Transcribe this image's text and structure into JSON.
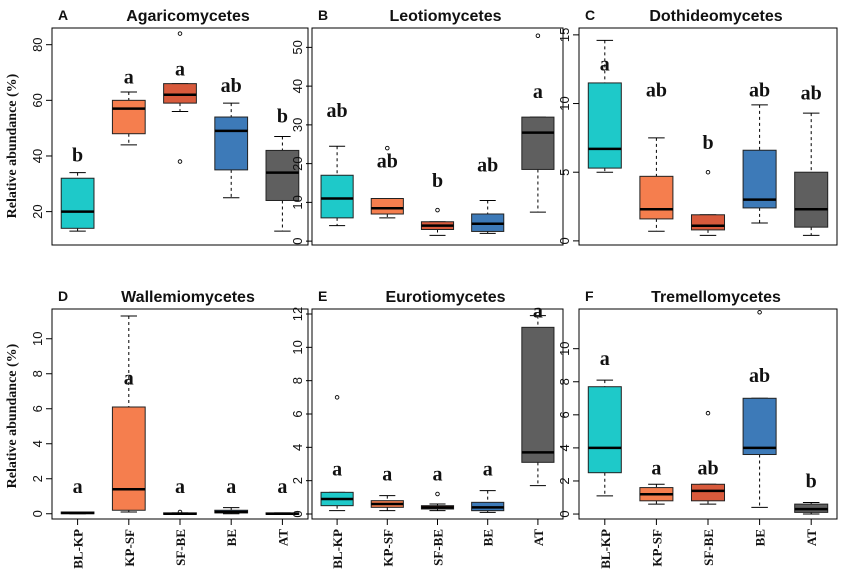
{
  "figure": {
    "ylabel": "Relative abundance (%)",
    "colors": {
      "BL-KP": "#1ec9c9",
      "KP-SF": "#f57e4e",
      "SF-BE": "#d85a3c",
      "BE": "#3d7ab8",
      "AT": "#5f5f5f"
    }
  },
  "chart_data": [
    {
      "type": "box",
      "letter": "A",
      "title": "Agaricomycetes",
      "categories": [
        "BL-KP",
        "KP-SF",
        "SF-BE",
        "BE",
        "AT"
      ],
      "ylim": [
        8,
        86
      ],
      "yticks": [
        20,
        40,
        60,
        80
      ],
      "boxes": [
        {
          "min": 13,
          "q1": 14,
          "median": 20,
          "q3": 32,
          "max": 34,
          "outliers": []
        },
        {
          "min": 44,
          "q1": 48,
          "median": 57,
          "q3": 60,
          "max": 63,
          "outliers": []
        },
        {
          "min": 56,
          "q1": 59,
          "median": 62,
          "q3": 66,
          "max": 66,
          "outliers": [
            84,
            38
          ]
        },
        {
          "min": 25,
          "q1": 35,
          "median": 49,
          "q3": 54,
          "max": 59,
          "outliers": []
        },
        {
          "min": 13,
          "q1": 24,
          "median": 34,
          "q3": 42,
          "max": 47,
          "outliers": []
        }
      ],
      "labels": [
        "b",
        "a",
        "a",
        "ab",
        "b"
      ],
      "label_y": [
        38,
        66,
        69,
        63,
        52
      ]
    },
    {
      "type": "box",
      "letter": "B",
      "title": "Leotiomycetes",
      "categories": [
        "BL-KP",
        "KP-SF",
        "SF-BE",
        "BE",
        "AT"
      ],
      "ylim": [
        -1,
        55
      ],
      "yticks": [
        0,
        10,
        20,
        30,
        40,
        50
      ],
      "boxes": [
        {
          "min": 4,
          "q1": 6,
          "median": 11,
          "q3": 17,
          "max": 24.5,
          "outliers": []
        },
        {
          "min": 6,
          "q1": 7,
          "median": 8.5,
          "q3": 11,
          "max": 11,
          "outliers": [
            24
          ]
        },
        {
          "min": 1.5,
          "q1": 3,
          "median": 4,
          "q3": 5,
          "max": 5,
          "outliers": [
            8
          ]
        },
        {
          "min": 2,
          "q1": 2.5,
          "median": 4.5,
          "q3": 7,
          "max": 10.5,
          "outliers": []
        },
        {
          "min": 7.5,
          "q1": 18.5,
          "median": 28,
          "q3": 32,
          "max": 32,
          "outliers": [
            53
          ]
        }
      ],
      "labels": [
        "ab",
        "ab",
        "b",
        "ab",
        "a"
      ],
      "label_y": [
        32,
        19,
        14,
        18,
        37
      ]
    },
    {
      "type": "box",
      "letter": "C",
      "title": "Dothideomycetes",
      "categories": [
        "BL-KP",
        "KP-SF",
        "SF-BE",
        "BE",
        "AT"
      ],
      "ylim": [
        -0.3,
        15.5
      ],
      "yticks": [
        0,
        5,
        10,
        15
      ],
      "boxes": [
        {
          "min": 5,
          "q1": 5.3,
          "median": 6.7,
          "q3": 11.5,
          "max": 14.6,
          "outliers": []
        },
        {
          "min": 0.7,
          "q1": 1.6,
          "median": 2.3,
          "q3": 4.7,
          "max": 7.5,
          "outliers": []
        },
        {
          "min": 0.4,
          "q1": 0.8,
          "median": 1.1,
          "q3": 1.9,
          "max": 1.9,
          "outliers": [
            5
          ]
        },
        {
          "min": 1.3,
          "q1": 2.4,
          "median": 3,
          "q3": 6.6,
          "max": 9.9,
          "outliers": []
        },
        {
          "min": 0.4,
          "q1": 1,
          "median": 2.3,
          "q3": 5,
          "max": 9.3,
          "outliers": []
        }
      ],
      "labels": [
        "a",
        "ab",
        "b",
        "ab",
        "ab"
      ],
      "label_y": [
        12.4,
        10.5,
        6.7,
        10.5,
        10.3
      ]
    },
    {
      "type": "box",
      "letter": "D",
      "title": "Wallemiomycetes",
      "categories": [
        "BL-KP",
        "KP-SF",
        "SF-BE",
        "BE",
        "AT"
      ],
      "ylim": [
        -0.3,
        11.7
      ],
      "yticks": [
        0,
        2,
        4,
        6,
        8,
        10
      ],
      "boxes": [
        {
          "min": 0,
          "q1": 0,
          "median": 0.05,
          "q3": 0.1,
          "max": 0.1,
          "outliers": []
        },
        {
          "min": 0.1,
          "q1": 0.2,
          "median": 1.4,
          "q3": 6.1,
          "max": 11.3,
          "outliers": []
        },
        {
          "min": 0,
          "q1": 0,
          "median": 0,
          "q3": 0.05,
          "max": 0.05,
          "outliers": [
            0.1
          ]
        },
        {
          "min": 0,
          "q1": 0.05,
          "median": 0.1,
          "q3": 0.2,
          "max": 0.35,
          "outliers": []
        },
        {
          "min": 0,
          "q1": 0,
          "median": 0,
          "q3": 0.05,
          "max": 0.05,
          "outliers": []
        }
      ],
      "labels": [
        "a",
        "a",
        "a",
        "a",
        "a"
      ],
      "label_y": [
        1.2,
        7.4,
        1.2,
        1.2,
        1.2
      ]
    },
    {
      "type": "box",
      "letter": "E",
      "title": "Eurotiomycetes",
      "categories": [
        "BL-KP",
        "KP-SF",
        "SF-BE",
        "BE",
        "AT"
      ],
      "ylim": [
        -0.3,
        12.3
      ],
      "yticks": [
        0,
        2,
        4,
        6,
        8,
        10,
        12
      ],
      "boxes": [
        {
          "min": 0.2,
          "q1": 0.5,
          "median": 0.9,
          "q3": 1.3,
          "max": 1.3,
          "outliers": [
            7
          ]
        },
        {
          "min": 0.2,
          "q1": 0.4,
          "median": 0.6,
          "q3": 0.8,
          "max": 1.1,
          "outliers": []
        },
        {
          "min": 0.2,
          "q1": 0.3,
          "median": 0.4,
          "q3": 0.5,
          "max": 0.6,
          "outliers": [
            1.2
          ]
        },
        {
          "min": 0.1,
          "q1": 0.2,
          "median": 0.4,
          "q3": 0.7,
          "max": 1.4,
          "outliers": []
        },
        {
          "min": 1.7,
          "q1": 3.1,
          "median": 3.7,
          "q3": 11.2,
          "max": 11.9,
          "outliers": []
        }
      ],
      "labels": [
        "a",
        "a",
        "a",
        "a",
        "a"
      ],
      "label_y": [
        2.3,
        2,
        2,
        2.3,
        11.8
      ]
    },
    {
      "type": "box",
      "letter": "F",
      "title": "Tremellomycetes",
      "categories": [
        "BL-KP",
        "KP-SF",
        "SF-BE",
        "BE",
        "AT"
      ],
      "ylim": [
        -0.3,
        12.4
      ],
      "yticks": [
        0,
        2,
        4,
        6,
        8,
        10
      ],
      "boxes": [
        {
          "min": 1.1,
          "q1": 2.5,
          "median": 4,
          "q3": 7.7,
          "max": 8.1,
          "outliers": []
        },
        {
          "min": 0.6,
          "q1": 0.8,
          "median": 1.2,
          "q3": 1.6,
          "max": 1.8,
          "outliers": []
        },
        {
          "min": 0.6,
          "q1": 0.8,
          "median": 1.4,
          "q3": 1.8,
          "max": 1.8,
          "outliers": [
            6.1
          ]
        },
        {
          "min": 0.4,
          "q1": 3.6,
          "median": 4,
          "q3": 7,
          "max": 7,
          "outliers": [
            12.2
          ]
        },
        {
          "min": 0,
          "q1": 0.1,
          "median": 0.3,
          "q3": 0.6,
          "max": 0.7,
          "outliers": []
        }
      ],
      "labels": [
        "a",
        "a",
        "ab",
        "ab",
        "b"
      ],
      "label_y": [
        9,
        2.4,
        2.4,
        8,
        1.6
      ]
    }
  ]
}
